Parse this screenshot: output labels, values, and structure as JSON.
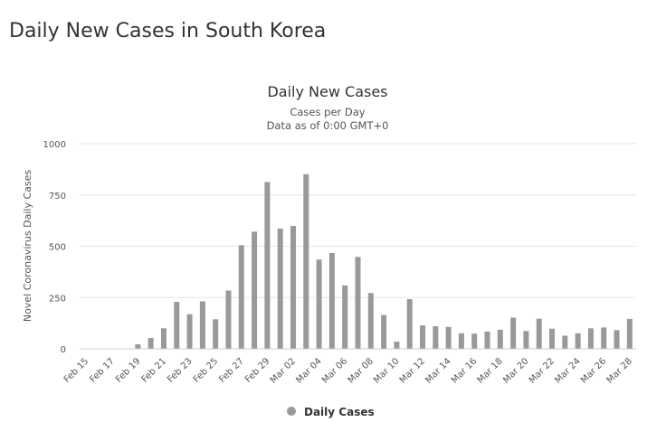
{
  "page": {
    "heading": "Daily New Cases in South Korea"
  },
  "colors": {
    "bar": "#999999",
    "grid": "#e6e6e6",
    "axis": "#cccccc"
  },
  "chart_data": {
    "type": "bar",
    "title": "Daily New Cases",
    "subtitle": "Cases per Day",
    "subtitle2": "Data as of 0:00 GMT+0",
    "xlabel": "",
    "ylabel": "Novel Coronavirus Daily Cases",
    "ylim": [
      0,
      1000
    ],
    "yticks": [
      0,
      250,
      500,
      750,
      1000
    ],
    "ytick_labels": [
      "0",
      "250",
      "500",
      "750",
      "1000"
    ],
    "grid": true,
    "legend": {
      "position": "bottom-center",
      "entries": [
        "Daily Cases"
      ]
    },
    "categories": [
      "Feb 15",
      "Feb 16",
      "Feb 17",
      "Feb 18",
      "Feb 19",
      "Feb 20",
      "Feb 21",
      "Feb 22",
      "Feb 23",
      "Feb 24",
      "Feb 25",
      "Feb 26",
      "Feb 27",
      "Feb 28",
      "Feb 29",
      "Mar 01",
      "Mar 02",
      "Mar 03",
      "Mar 04",
      "Mar 05",
      "Mar 06",
      "Mar 07",
      "Mar 08",
      "Mar 09",
      "Mar 10",
      "Mar 11",
      "Mar 12",
      "Mar 13",
      "Mar 14",
      "Mar 15",
      "Mar 16",
      "Mar 17",
      "Mar 18",
      "Mar 19",
      "Mar 20",
      "Mar 21",
      "Mar 22",
      "Mar 23",
      "Mar 24",
      "Mar 25",
      "Mar 26",
      "Mar 27",
      "Mar 28"
    ],
    "xtick_labels": [
      "Feb 15",
      "Feb 17",
      "Feb 19",
      "Feb 21",
      "Feb 23",
      "Feb 25",
      "Feb 27",
      "Feb 29",
      "Mar 02",
      "Mar 04",
      "Mar 06",
      "Mar 08",
      "Mar 10",
      "Mar 12",
      "Mar 14",
      "Mar 16",
      "Mar 18",
      "Mar 20",
      "Mar 22",
      "Mar 24",
      "Mar 26",
      "Mar 28"
    ],
    "series": [
      {
        "name": "Daily Cases",
        "values": [
          0,
          0,
          1,
          1,
          22,
          53,
          100,
          229,
          169,
          231,
          144,
          284,
          505,
          571,
          813,
          586,
          599,
          851,
          435,
          467,
          309,
          448,
          272,
          165,
          35,
          242,
          114,
          110,
          107,
          76,
          74,
          84,
          93,
          152,
          87,
          147,
          98,
          64,
          76,
          100,
          104,
          91,
          146
        ]
      }
    ]
  }
}
